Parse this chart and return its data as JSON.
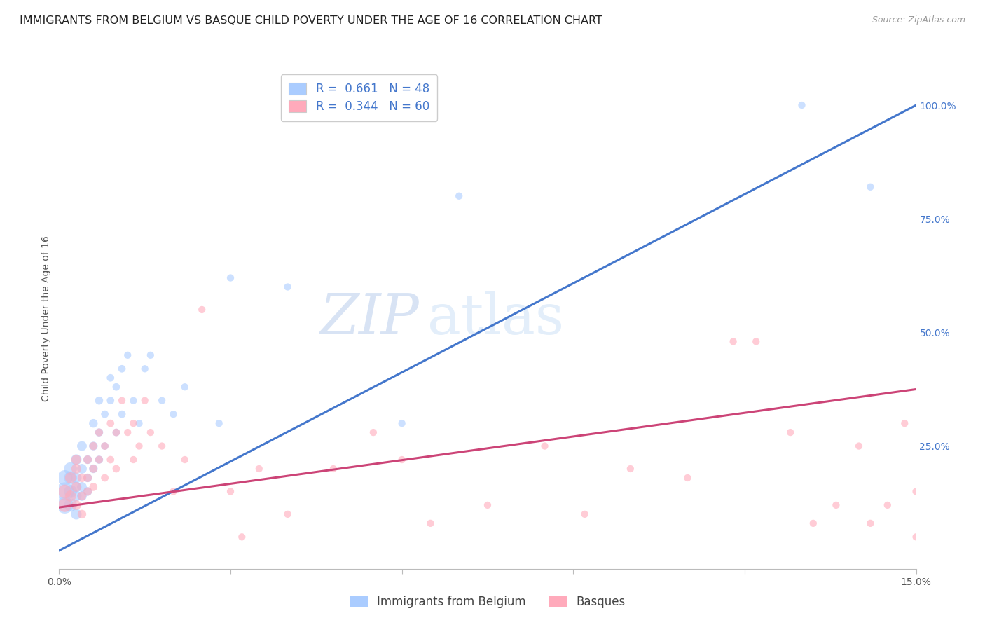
{
  "title": "IMMIGRANTS FROM BELGIUM VS BASQUE CHILD POVERTY UNDER THE AGE OF 16 CORRELATION CHART",
  "source": "Source: ZipAtlas.com",
  "ylabel": "Child Poverty Under the Age of 16",
  "xlim": [
    0.0,
    0.15
  ],
  "ylim": [
    -0.02,
    1.08
  ],
  "xtick_vals": [
    0.0,
    0.03,
    0.06,
    0.09,
    0.12,
    0.15
  ],
  "xticklabels": [
    "0.0%",
    "",
    "",
    "",
    "",
    "15.0%"
  ],
  "yticks_right": [
    0.0,
    0.25,
    0.5,
    0.75,
    1.0
  ],
  "yticklabels_right": [
    "",
    "25.0%",
    "50.0%",
    "75.0%",
    "100.0%"
  ],
  "legend1_label": "R =  0.661   N = 48",
  "legend2_label": "R =  0.344   N = 60",
  "legend_bottom1": "Immigrants from Belgium",
  "legend_bottom2": "Basques",
  "blue_color": "#aaccff",
  "pink_color": "#ffaabb",
  "blue_line_color": "#4477cc",
  "pink_line_color": "#cc4477",
  "watermark_zip": "ZIP",
  "watermark_atlas": "atlas",
  "blue_line_x": [
    0.0,
    0.15
  ],
  "blue_line_y": [
    0.02,
    1.0
  ],
  "pink_line_x": [
    0.0,
    0.15
  ],
  "pink_line_y": [
    0.115,
    0.375
  ],
  "blue_scatter_x": [
    0.001,
    0.001,
    0.001,
    0.002,
    0.002,
    0.002,
    0.002,
    0.003,
    0.003,
    0.003,
    0.003,
    0.003,
    0.004,
    0.004,
    0.004,
    0.004,
    0.005,
    0.005,
    0.005,
    0.006,
    0.006,
    0.006,
    0.007,
    0.007,
    0.007,
    0.008,
    0.008,
    0.009,
    0.009,
    0.01,
    0.01,
    0.011,
    0.011,
    0.012,
    0.013,
    0.014,
    0.015,
    0.016,
    0.018,
    0.02,
    0.022,
    0.028,
    0.03,
    0.04,
    0.06,
    0.07,
    0.13,
    0.142
  ],
  "blue_scatter_y": [
    0.15,
    0.12,
    0.18,
    0.2,
    0.15,
    0.18,
    0.12,
    0.16,
    0.22,
    0.18,
    0.14,
    0.1,
    0.25,
    0.2,
    0.16,
    0.14,
    0.22,
    0.18,
    0.15,
    0.3,
    0.25,
    0.2,
    0.35,
    0.28,
    0.22,
    0.32,
    0.25,
    0.4,
    0.35,
    0.38,
    0.28,
    0.42,
    0.32,
    0.45,
    0.35,
    0.3,
    0.42,
    0.45,
    0.35,
    0.32,
    0.38,
    0.3,
    0.62,
    0.6,
    0.3,
    0.8,
    1.0,
    0.82
  ],
  "blue_scatter_s": [
    350,
    300,
    250,
    180,
    180,
    180,
    180,
    120,
    120,
    120,
    120,
    120,
    100,
    100,
    100,
    100,
    80,
    80,
    80,
    80,
    80,
    80,
    70,
    70,
    70,
    60,
    60,
    60,
    60,
    60,
    60,
    60,
    60,
    55,
    55,
    55,
    55,
    55,
    55,
    55,
    55,
    55,
    55,
    55,
    55,
    55,
    55,
    55
  ],
  "pink_scatter_x": [
    0.001,
    0.001,
    0.002,
    0.002,
    0.003,
    0.003,
    0.003,
    0.003,
    0.004,
    0.004,
    0.004,
    0.005,
    0.005,
    0.005,
    0.006,
    0.006,
    0.006,
    0.007,
    0.007,
    0.008,
    0.008,
    0.009,
    0.009,
    0.01,
    0.01,
    0.011,
    0.012,
    0.013,
    0.013,
    0.014,
    0.015,
    0.016,
    0.018,
    0.02,
    0.022,
    0.025,
    0.03,
    0.032,
    0.035,
    0.04,
    0.048,
    0.055,
    0.06,
    0.065,
    0.075,
    0.085,
    0.092,
    0.1,
    0.11,
    0.118,
    0.122,
    0.128,
    0.132,
    0.136,
    0.14,
    0.142,
    0.145,
    0.148,
    0.15,
    0.15
  ],
  "pink_scatter_y": [
    0.15,
    0.12,
    0.18,
    0.14,
    0.2,
    0.16,
    0.22,
    0.12,
    0.18,
    0.14,
    0.1,
    0.22,
    0.18,
    0.15,
    0.25,
    0.2,
    0.16,
    0.28,
    0.22,
    0.25,
    0.18,
    0.3,
    0.22,
    0.28,
    0.2,
    0.35,
    0.28,
    0.22,
    0.3,
    0.25,
    0.35,
    0.28,
    0.25,
    0.15,
    0.22,
    0.55,
    0.15,
    0.05,
    0.2,
    0.1,
    0.2,
    0.28,
    0.22,
    0.08,
    0.12,
    0.25,
    0.1,
    0.2,
    0.18,
    0.48,
    0.48,
    0.28,
    0.08,
    0.12,
    0.25,
    0.08,
    0.12,
    0.3,
    0.15,
    0.05
  ],
  "pink_scatter_s": [
    200,
    200,
    130,
    130,
    100,
    100,
    100,
    100,
    80,
    80,
    80,
    75,
    75,
    75,
    70,
    70,
    70,
    65,
    65,
    60,
    60,
    60,
    60,
    60,
    60,
    55,
    55,
    55,
    55,
    55,
    55,
    55,
    55,
    55,
    55,
    55,
    55,
    55,
    55,
    55,
    55,
    55,
    55,
    55,
    55,
    55,
    55,
    55,
    55,
    55,
    55,
    55,
    55,
    55,
    55,
    55,
    55,
    55,
    55,
    55
  ],
  "title_fontsize": 11.5,
  "source_fontsize": 9,
  "axis_label_fontsize": 10,
  "tick_fontsize": 10,
  "legend_fontsize": 12,
  "background_color": "#ffffff",
  "grid_color": "#dddddd"
}
